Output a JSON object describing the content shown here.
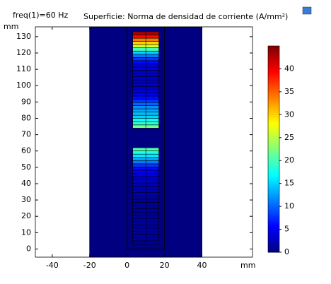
{
  "chart_data": {
    "type": "surface",
    "annotation": "freq(1)=60 Hz",
    "title": "Superficie: Norma de densidad de corriente (A/mm²)",
    "ylabel": "mm",
    "xlabel": "mm",
    "xlim": [
      -49,
      67
    ],
    "xticks": [
      -40,
      -20,
      0,
      20,
      40
    ],
    "ylim": [
      -5,
      136
    ],
    "yticks": [
      0,
      10,
      20,
      30,
      40,
      50,
      60,
      70,
      80,
      90,
      100,
      110,
      120,
      130
    ],
    "colormap": "rainbow",
    "domain": {
      "x_range": [
        -20,
        40
      ],
      "value": 0
    },
    "coil_box": {
      "x_range": [
        0,
        20
      ],
      "y_range": [
        0,
        136
      ]
    },
    "stacks": [
      {
        "x_range": [
          3,
          17
        ],
        "y_range": [
          3,
          62
        ],
        "values": [
          1,
          1,
          1,
          1,
          1,
          1,
          1,
          1,
          1,
          1,
          1,
          1,
          1,
          1,
          2,
          2,
          2,
          2,
          2,
          3,
          3,
          4,
          5,
          6,
          8,
          11,
          13,
          16,
          18,
          20
        ]
      },
      {
        "x_range": [
          3,
          17
        ],
        "y_range": [
          74,
          133
        ],
        "values": [
          22,
          19,
          17,
          15,
          14,
          13,
          12,
          10,
          8,
          6,
          5,
          4,
          3,
          3,
          3,
          3,
          3,
          3,
          4,
          5,
          6,
          8,
          11,
          15,
          20,
          26,
          30,
          34,
          39,
          43
        ]
      }
    ],
    "colorbar": {
      "clim": [
        0,
        45
      ],
      "ticks": [
        0,
        5,
        10,
        15,
        20,
        25,
        30,
        35,
        40
      ]
    }
  }
}
